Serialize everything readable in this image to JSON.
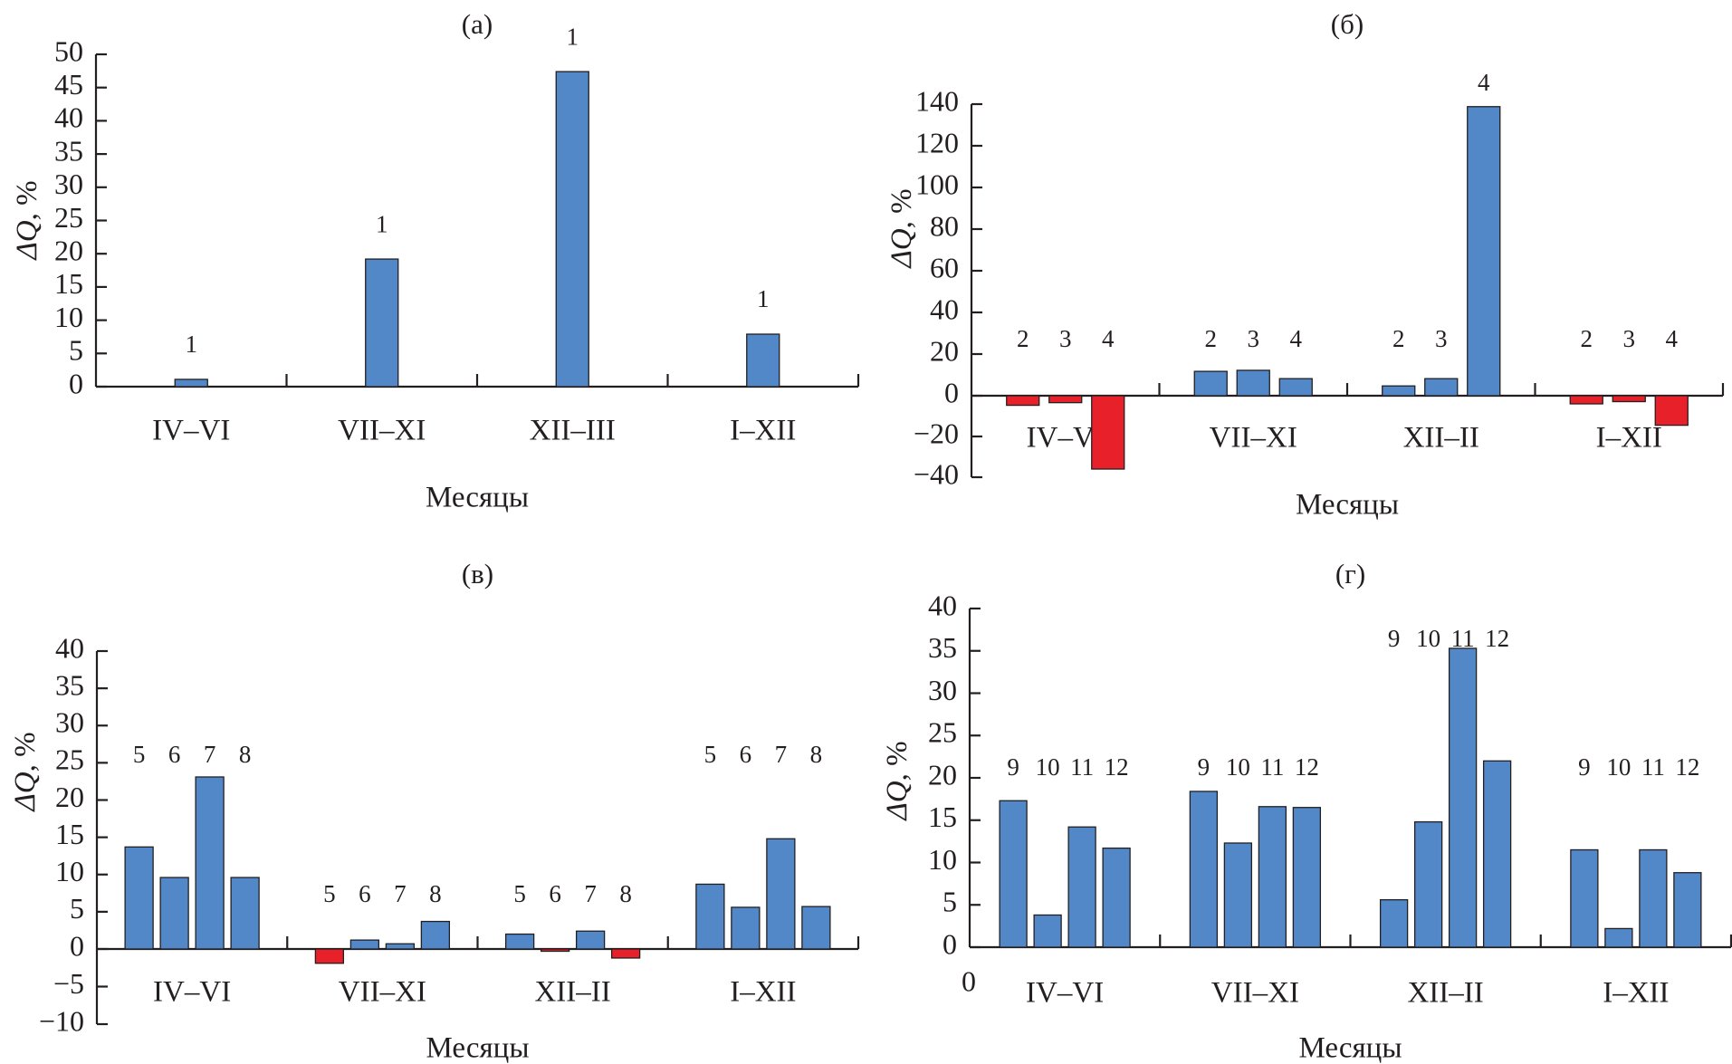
{
  "figure": {
    "colors": {
      "positive": "#5288c8",
      "negative": "#e8202a",
      "axis": "#231f20"
    }
  },
  "chart_data": [
    {
      "id": "a",
      "type": "bar",
      "title": "(а)",
      "xlabel": "Месяцы",
      "ylabel": "ΔQ, %",
      "ylim": [
        0,
        50
      ],
      "yticks": [
        0,
        5,
        10,
        15,
        20,
        25,
        30,
        35,
        40,
        45,
        50
      ],
      "categories": [
        "IV–VI",
        "VII–XI",
        "XII–III",
        "I–XII"
      ],
      "series": [
        {
          "name": "1",
          "values": [
            1.1,
            19.2,
            47.4,
            7.9
          ]
        }
      ],
      "bar_labels": [
        [
          "1"
        ],
        [
          "1"
        ],
        [
          "1"
        ],
        [
          "1"
        ]
      ],
      "grid": false
    },
    {
      "id": "b",
      "type": "bar",
      "title": "(б)",
      "xlabel": "Месяцы",
      "ylabel": "ΔQ, %",
      "ylim": [
        -40,
        140
      ],
      "yticks": [
        -40,
        -20,
        0,
        20,
        40,
        60,
        80,
        100,
        120,
        140
      ],
      "categories": [
        "IV–VI",
        "VII–XI",
        "XII–II",
        "I–XII"
      ],
      "series": [
        {
          "name": "2",
          "values": [
            -4.7,
            11.7,
            4.7,
            -4.0
          ]
        },
        {
          "name": "3",
          "values": [
            -3.4,
            12.2,
            8.2,
            -2.9
          ]
        },
        {
          "name": "4",
          "values": [
            -36.0,
            8.2,
            138.8,
            -14.5
          ]
        }
      ],
      "bar_labels": [
        [
          "2",
          "3",
          "4"
        ],
        [
          "2",
          "3",
          "4"
        ],
        [
          "2",
          "3"
        ],
        [
          "2",
          "3",
          "4"
        ]
      ],
      "top_labels": {
        "2": "4"
      },
      "grid": false
    },
    {
      "id": "v",
      "type": "bar",
      "title": "(в)",
      "xlabel": "Месяцы",
      "ylabel": "ΔQ, %",
      "ylim": [
        -10,
        40
      ],
      "yticks": [
        -10,
        -5,
        0,
        5,
        10,
        15,
        20,
        25,
        30,
        35,
        40
      ],
      "categories": [
        "IV–VI",
        "VII–XI",
        "XII–II",
        "I–XII"
      ],
      "series": [
        {
          "name": "5",
          "values": [
            13.7,
            -1.9,
            2.0,
            8.7
          ]
        },
        {
          "name": "6",
          "values": [
            9.6,
            1.2,
            -0.3,
            5.6
          ]
        },
        {
          "name": "7",
          "values": [
            23.1,
            0.7,
            2.4,
            14.8
          ]
        },
        {
          "name": "8",
          "values": [
            9.6,
            3.7,
            -1.2,
            5.7
          ]
        }
      ],
      "bar_labels": [
        [
          "5",
          "6",
          "7",
          "8"
        ],
        [
          "5",
          "6",
          "7",
          "8"
        ],
        [
          "5",
          "6",
          "7",
          "8"
        ],
        [
          "5",
          "6",
          "7",
          "8"
        ]
      ],
      "grid": false
    },
    {
      "id": "g",
      "type": "bar",
      "title": "(г)",
      "xlabel": "Месяцы",
      "ylabel": "ΔQ, %",
      "ylim": [
        0,
        40
      ],
      "yticks": [
        0,
        5,
        10,
        15,
        20,
        25,
        30,
        35,
        40
      ],
      "extra_label": "0",
      "categories": [
        "IV–VI",
        "VII–XI",
        "XII–II",
        "I–XII"
      ],
      "series": [
        {
          "name": "9",
          "values": [
            17.3,
            18.4,
            5.6,
            11.5
          ]
        },
        {
          "name": "10",
          "values": [
            3.8,
            12.3,
            14.8,
            2.2
          ]
        },
        {
          "name": "11",
          "values": [
            14.2,
            16.6,
            35.3,
            11.5
          ]
        },
        {
          "name": "12",
          "values": [
            11.7,
            16.5,
            22.0,
            8.8
          ]
        }
      ],
      "bar_labels": [
        [
          "9",
          "10",
          "11",
          "12"
        ],
        [
          "9",
          "10",
          "11",
          "12"
        ],
        [
          "9",
          "10",
          "11",
          "12"
        ],
        [
          "9",
          "10",
          "11",
          "12"
        ]
      ],
      "grid": false
    }
  ]
}
